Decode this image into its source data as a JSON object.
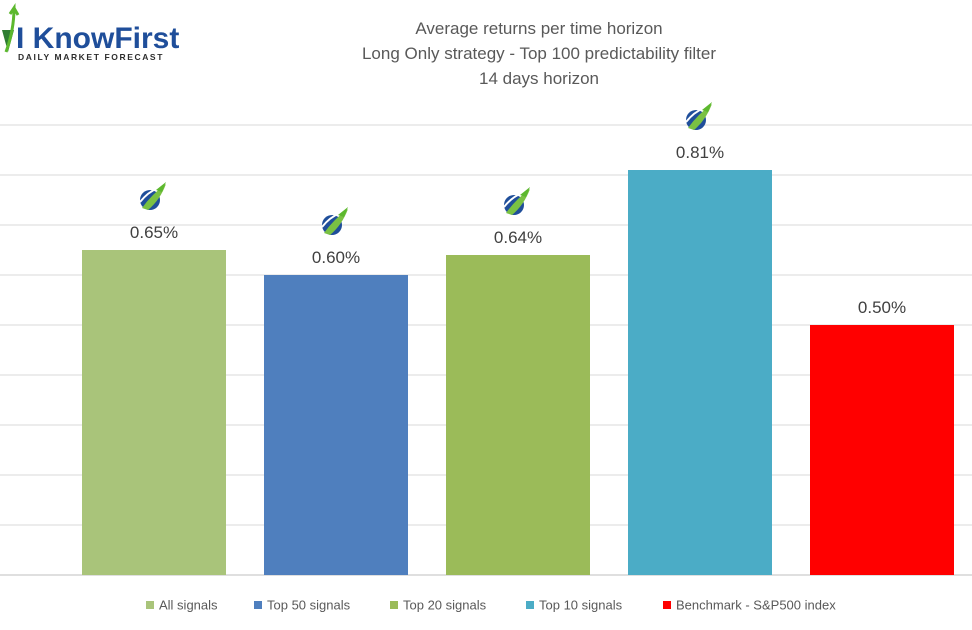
{
  "logo": {
    "name": "I KnowFirst",
    "tagline": "Daily Market Forecast"
  },
  "chart_data": {
    "type": "bar",
    "title": [
      "Average returns per time horizon",
      "Long Only strategy - Top 100 predictability filter",
      "14 days horizon"
    ],
    "categories": [
      "All signals",
      "Top 50 signals",
      "Top 20 signals",
      "Top 10 signals",
      "Benchmark - S&P500 index"
    ],
    "values": [
      0.65,
      0.6,
      0.64,
      0.81,
      0.5
    ],
    "data_labels": [
      "0.65%",
      "0.60%",
      "0.64%",
      "0.81%",
      "0.50%"
    ],
    "colors": [
      "#a9c47a",
      "#4f7fbe",
      "#9bbb59",
      "#4bacc6",
      "#ff0000"
    ],
    "signal_icon_on": [
      true,
      true,
      true,
      true,
      false
    ],
    "ylim": [
      0,
      0.9
    ],
    "grid": true,
    "legend_position": "bottom"
  }
}
